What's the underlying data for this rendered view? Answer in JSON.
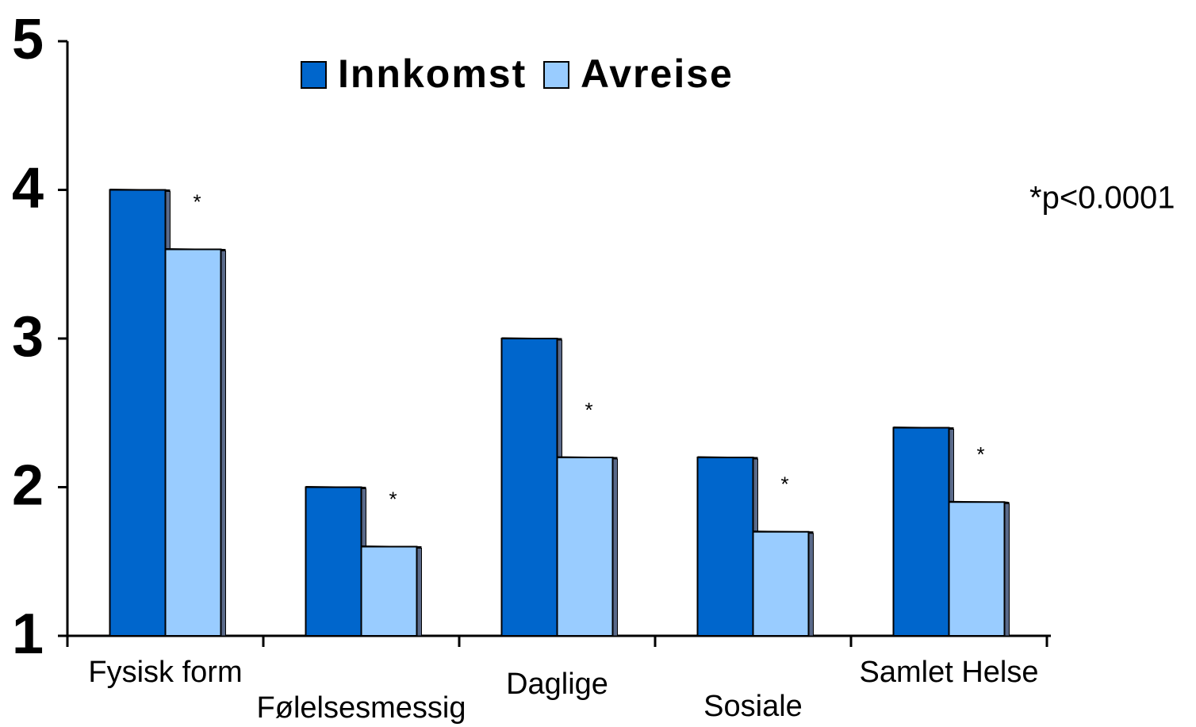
{
  "chart_data": {
    "type": "bar",
    "categories": [
      "Fysisk form",
      "Følelsesmessig",
      "Daglige",
      "Sosiale",
      "Samlet Helse"
    ],
    "series": [
      {
        "name": "Innkomst",
        "color": "#0066cc",
        "values": [
          4,
          2,
          3,
          2.2,
          2.4
        ]
      },
      {
        "name": "Avreise",
        "color": "#99ccff",
        "values": [
          3.6,
          1.6,
          2.2,
          1.7,
          1.9
        ]
      }
    ],
    "annotations": [
      "*",
      "*",
      "*",
      "*",
      "*"
    ],
    "note": "*p<0.0001",
    "ylim": [
      1,
      5
    ],
    "yticks": [
      1,
      2,
      3,
      4,
      5
    ],
    "grid": false,
    "legend": "top"
  }
}
